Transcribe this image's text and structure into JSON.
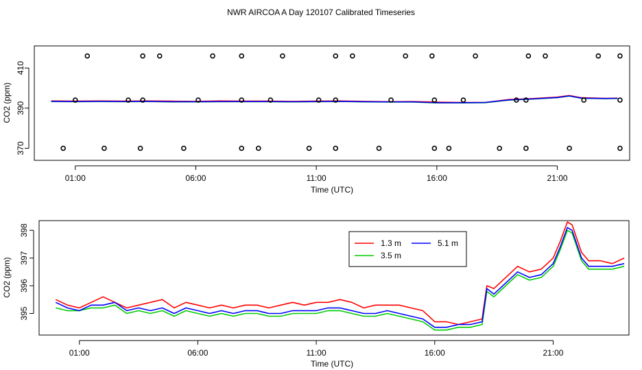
{
  "title": "NWR AIRCOA A  Day 120107  Calibrated Timeseries",
  "colors": {
    "c13": "#ff0000",
    "c35": "#00cc00",
    "c51": "#0000ff",
    "axis": "#000000"
  },
  "chart_data": [
    {
      "type": "line",
      "title": "",
      "xlabel": "Time (UTC)",
      "ylabel": "CO2 (ppm)",
      "xlim": [
        -0.7,
        24.0
      ],
      "ylim": [
        364.0,
        421.0
      ],
      "xticks": [
        1,
        6,
        11,
        16,
        21
      ],
      "xtick_labels": [
        "01:00",
        "06:00",
        "11:00",
        "16:00",
        "21:00"
      ],
      "yticks": [
        370,
        390,
        410
      ],
      "ytick_labels": [
        "370",
        "390",
        "410"
      ],
      "grid": false,
      "series": [
        {
          "key": "c13",
          "x": [
            0,
            1,
            2,
            3,
            4,
            5,
            6,
            7,
            8,
            9,
            10,
            11,
            12,
            13,
            14,
            15,
            16,
            17,
            18,
            19,
            20,
            21,
            21.5,
            22,
            23,
            23.5
          ],
          "y": [
            393.6,
            393.5,
            393.6,
            393.5,
            393.6,
            393.5,
            393.4,
            393.6,
            393.5,
            393.5,
            393.4,
            393.5,
            393.6,
            393.4,
            393.2,
            393.3,
            393.0,
            392.8,
            392.8,
            394.3,
            394.8,
            395.5,
            396.3,
            395.2,
            394.9,
            395.0
          ]
        },
        {
          "key": "c35",
          "x": [
            0,
            1,
            2,
            3,
            4,
            5,
            6,
            7,
            8,
            9,
            10,
            11,
            12,
            13,
            14,
            15,
            16,
            17,
            18,
            19,
            20,
            21,
            21.5,
            22,
            23,
            23.5
          ],
          "y": [
            393.3,
            393.2,
            393.3,
            393.2,
            393.3,
            393.1,
            393.1,
            393.2,
            393.2,
            393.2,
            393.1,
            393.2,
            393.3,
            393.1,
            393.0,
            393.0,
            392.6,
            392.6,
            392.7,
            394.0,
            394.5,
            395.2,
            396.0,
            394.9,
            394.7,
            394.8
          ]
        },
        {
          "key": "c51",
          "x": [
            0,
            1,
            2,
            3,
            4,
            5,
            6,
            7,
            8,
            9,
            10,
            11,
            12,
            13,
            14,
            15,
            16,
            17,
            18,
            19,
            20,
            21,
            21.5,
            22,
            23,
            23.5
          ],
          "y": [
            393.4,
            393.3,
            393.4,
            393.3,
            393.4,
            393.2,
            393.2,
            393.3,
            393.3,
            393.3,
            393.2,
            393.3,
            393.4,
            393.2,
            393.1,
            393.1,
            392.7,
            392.7,
            392.8,
            394.1,
            394.6,
            395.3,
            396.1,
            395.0,
            394.8,
            394.9
          ]
        }
      ],
      "points": [
        {
          "x": 0.5,
          "y": 370
        },
        {
          "x": 2.2,
          "y": 370
        },
        {
          "x": 3.7,
          "y": 370
        },
        {
          "x": 5.5,
          "y": 370
        },
        {
          "x": 7.9,
          "y": 370
        },
        {
          "x": 8.6,
          "y": 370
        },
        {
          "x": 10.7,
          "y": 370
        },
        {
          "x": 11.8,
          "y": 370
        },
        {
          "x": 13.6,
          "y": 370
        },
        {
          "x": 15.9,
          "y": 370
        },
        {
          "x": 16.5,
          "y": 370
        },
        {
          "x": 18.6,
          "y": 370
        },
        {
          "x": 19.7,
          "y": 370
        },
        {
          "x": 21.5,
          "y": 370
        },
        {
          "x": 23.6,
          "y": 370
        },
        {
          "x": 1.0,
          "y": 394
        },
        {
          "x": 3.2,
          "y": 394
        },
        {
          "x": 3.8,
          "y": 394
        },
        {
          "x": 6.1,
          "y": 394
        },
        {
          "x": 7.9,
          "y": 394
        },
        {
          "x": 9.1,
          "y": 394
        },
        {
          "x": 11.1,
          "y": 394
        },
        {
          "x": 11.8,
          "y": 394
        },
        {
          "x": 14.1,
          "y": 394
        },
        {
          "x": 15.9,
          "y": 394
        },
        {
          "x": 17.1,
          "y": 394
        },
        {
          "x": 19.3,
          "y": 394
        },
        {
          "x": 19.7,
          "y": 394
        },
        {
          "x": 22.1,
          "y": 394
        },
        {
          "x": 23.6,
          "y": 394
        },
        {
          "x": 1.5,
          "y": 416
        },
        {
          "x": 3.8,
          "y": 416
        },
        {
          "x": 4.5,
          "y": 416
        },
        {
          "x": 6.7,
          "y": 416
        },
        {
          "x": 7.9,
          "y": 416
        },
        {
          "x": 9.6,
          "y": 416
        },
        {
          "x": 11.8,
          "y": 416
        },
        {
          "x": 12.5,
          "y": 416
        },
        {
          "x": 14.7,
          "y": 416
        },
        {
          "x": 15.8,
          "y": 416
        },
        {
          "x": 17.6,
          "y": 416
        },
        {
          "x": 19.8,
          "y": 416
        },
        {
          "x": 20.5,
          "y": 416
        },
        {
          "x": 22.7,
          "y": 416
        },
        {
          "x": 23.6,
          "y": 416
        }
      ]
    },
    {
      "type": "line",
      "title": "",
      "xlabel": "Time (UTC)",
      "ylabel": "CO2 (ppm)",
      "xlim": [
        -0.7,
        24.2
      ],
      "ylim": [
        394.22,
        398.35
      ],
      "xticks": [
        1,
        6,
        11,
        16,
        21
      ],
      "xtick_labels": [
        "01:00",
        "06:00",
        "11:00",
        "16:00",
        "21:00"
      ],
      "yticks": [
        395,
        396,
        397,
        398
      ],
      "ytick_labels": [
        "395",
        "396",
        "397",
        "398"
      ],
      "grid": false,
      "legend": {
        "position": "top-center",
        "entries": [
          {
            "label": "1.3 m",
            "key": "c13"
          },
          {
            "label": "5.1 m",
            "key": "c51"
          },
          {
            "label": "3.5 m",
            "key": "c35"
          }
        ]
      },
      "series": [
        {
          "key": "c13",
          "name": "1.3 m",
          "x": [
            0,
            0.5,
            1,
            1.5,
            2,
            2.5,
            3,
            3.5,
            4,
            4.5,
            5,
            5.5,
            6,
            6.5,
            7,
            7.5,
            8,
            8.5,
            9,
            9.5,
            10,
            10.5,
            11,
            11.5,
            12,
            12.5,
            13,
            13.5,
            14,
            14.5,
            15,
            15.5,
            16,
            16.5,
            17,
            17.5,
            18,
            18.2,
            18.5,
            19,
            19.5,
            20,
            20.5,
            21,
            21.3,
            21.6,
            21.8,
            22.2,
            22.5,
            23,
            23.5,
            24
          ],
          "y": [
            395.5,
            395.3,
            395.2,
            395.4,
            395.6,
            395.4,
            395.2,
            395.3,
            395.4,
            395.5,
            395.2,
            395.4,
            395.3,
            395.2,
            395.3,
            395.2,
            395.3,
            395.3,
            395.2,
            395.3,
            395.4,
            395.3,
            395.4,
            395.4,
            395.5,
            395.4,
            395.2,
            395.3,
            395.3,
            395.3,
            395.2,
            395.1,
            394.7,
            394.7,
            394.6,
            394.7,
            394.8,
            396.0,
            395.9,
            396.3,
            396.7,
            396.5,
            396.6,
            397.0,
            397.6,
            398.3,
            398.2,
            397.2,
            396.9,
            396.9,
            396.8,
            397.0
          ]
        },
        {
          "key": "c35",
          "name": "3.5 m",
          "x": [
            0,
            0.5,
            1,
            1.5,
            2,
            2.5,
            3,
            3.5,
            4,
            4.5,
            5,
            5.5,
            6,
            6.5,
            7,
            7.5,
            8,
            8.5,
            9,
            9.5,
            10,
            10.5,
            11,
            11.5,
            12,
            12.5,
            13,
            13.5,
            14,
            14.5,
            15,
            15.5,
            16,
            16.5,
            17,
            17.5,
            18,
            18.2,
            18.5,
            19,
            19.5,
            20,
            20.5,
            21,
            21.3,
            21.6,
            21.8,
            22.2,
            22.5,
            23,
            23.5,
            24
          ],
          "y": [
            395.2,
            395.1,
            395.1,
            395.2,
            395.2,
            395.3,
            395.0,
            395.1,
            395.0,
            395.1,
            394.9,
            395.1,
            395.0,
            394.9,
            395.0,
            394.9,
            395.0,
            395.0,
            394.9,
            394.9,
            395.0,
            395.0,
            395.0,
            395.1,
            395.1,
            395.0,
            394.9,
            394.9,
            395.0,
            394.9,
            394.8,
            394.7,
            394.4,
            394.4,
            394.5,
            394.5,
            394.6,
            395.8,
            395.6,
            396.0,
            396.4,
            396.2,
            396.3,
            396.7,
            397.3,
            398.0,
            397.9,
            396.9,
            396.6,
            396.6,
            396.6,
            396.7
          ]
        },
        {
          "key": "c51",
          "name": "5.1 m",
          "x": [
            0,
            0.5,
            1,
            1.5,
            2,
            2.5,
            3,
            3.5,
            4,
            4.5,
            5,
            5.5,
            6,
            6.5,
            7,
            7.5,
            8,
            8.5,
            9,
            9.5,
            10,
            10.5,
            11,
            11.5,
            12,
            12.5,
            13,
            13.5,
            14,
            14.5,
            15,
            15.5,
            16,
            16.5,
            17,
            17.5,
            18,
            18.2,
            18.5,
            19,
            19.5,
            20,
            20.5,
            21,
            21.3,
            21.6,
            21.8,
            22.2,
            22.5,
            23,
            23.5,
            24
          ],
          "y": [
            395.4,
            395.2,
            395.1,
            395.3,
            395.3,
            395.4,
            395.1,
            395.2,
            395.1,
            395.2,
            395.0,
            395.2,
            395.1,
            395.0,
            395.1,
            395.0,
            395.1,
            395.1,
            395.0,
            395.0,
            395.1,
            395.1,
            395.1,
            395.2,
            395.2,
            395.1,
            395.0,
            395.0,
            395.1,
            395.0,
            394.9,
            394.8,
            394.5,
            394.5,
            394.6,
            394.6,
            394.7,
            395.9,
            395.7,
            396.1,
            396.5,
            396.3,
            396.4,
            396.8,
            397.4,
            398.1,
            398.0,
            397.0,
            396.7,
            396.7,
            396.7,
            396.8
          ]
        }
      ]
    }
  ]
}
